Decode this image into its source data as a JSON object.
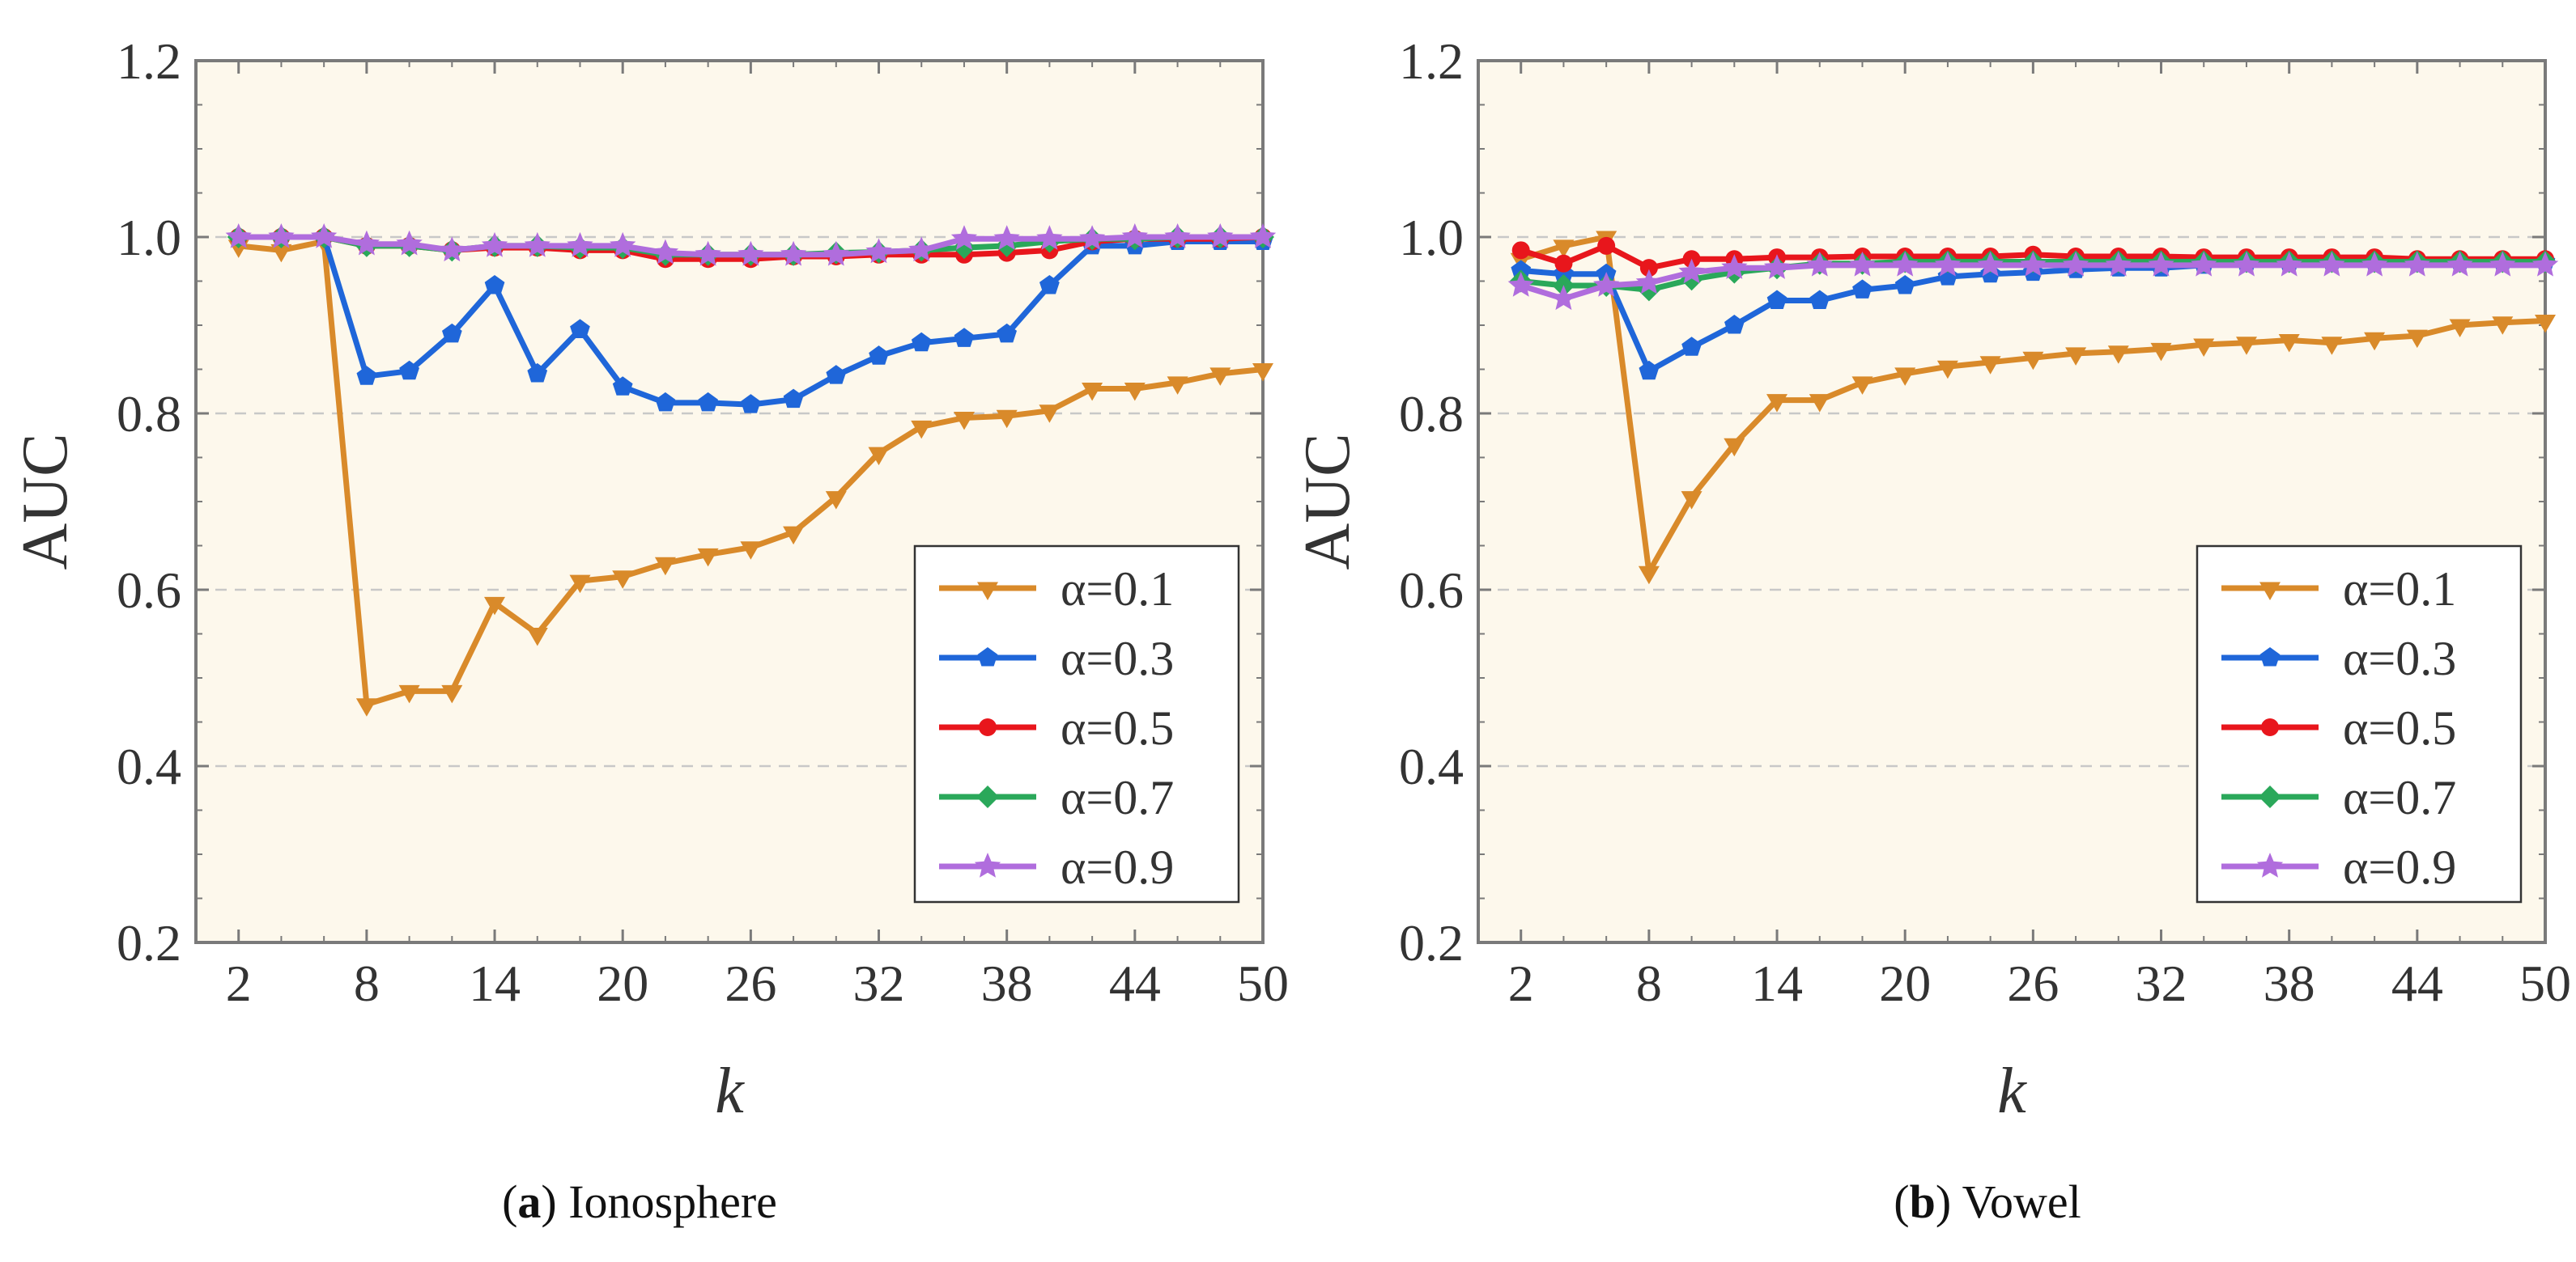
{
  "colors": {
    "plot_bg": "#fdf8ec",
    "frame": "#7a7a7a",
    "grid": "#c8c8c8",
    "series": [
      "#d98a2a",
      "#1f66d9",
      "#e8161c",
      "#2aa85a",
      "#b06ddd"
    ]
  },
  "chart_data": [
    {
      "type": "line",
      "caption_letter": "a",
      "caption_text": "Ionosphere",
      "xlabel": "k",
      "ylabel": "AUC",
      "xlim": [
        0,
        50
      ],
      "ylim": [
        0.2,
        1.2
      ],
      "xticks": [
        2,
        8,
        14,
        20,
        26,
        32,
        38,
        44,
        50
      ],
      "yticks": [
        0.2,
        0.4,
        0.6,
        0.8,
        1.0,
        1.2
      ],
      "ytick_labels": [
        "0.2",
        "0.4",
        "0.6",
        "0.8",
        "1.0",
        "1.2"
      ],
      "grid_y": [
        0.4,
        0.6,
        0.8,
        1.0
      ],
      "legend_position": "bottom-right",
      "x": [
        2,
        4,
        6,
        8,
        10,
        12,
        14,
        16,
        18,
        20,
        22,
        24,
        26,
        28,
        30,
        32,
        34,
        36,
        38,
        40,
        42,
        44,
        46,
        48,
        50
      ],
      "series": [
        {
          "name": "α=0.1",
          "marker": "triangle-down",
          "values": [
            0.99,
            0.985,
            0.995,
            0.47,
            0.485,
            0.485,
            0.585,
            0.55,
            0.61,
            0.615,
            0.63,
            0.64,
            0.648,
            0.665,
            0.705,
            0.755,
            0.785,
            0.795,
            0.797,
            0.803,
            0.828,
            0.828,
            0.835,
            0.845,
            0.85
          ]
        },
        {
          "name": "α=0.3",
          "marker": "pentagon",
          "values": [
            1.0,
            1.0,
            1.0,
            0.842,
            0.848,
            0.89,
            0.945,
            0.845,
            0.895,
            0.83,
            0.812,
            0.812,
            0.81,
            0.816,
            0.843,
            0.865,
            0.88,
            0.885,
            0.89,
            0.945,
            0.99,
            0.99,
            0.995,
            0.995,
            0.995
          ]
        },
        {
          "name": "α=0.5",
          "marker": "circle",
          "values": [
            1.0,
            1.0,
            1.0,
            0.99,
            0.99,
            0.985,
            0.988,
            0.988,
            0.985,
            0.985,
            0.975,
            0.975,
            0.975,
            0.978,
            0.978,
            0.98,
            0.98,
            0.98,
            0.982,
            0.985,
            0.995,
            0.998,
            0.998,
            0.998,
            1.0
          ]
        },
        {
          "name": "α=0.7",
          "marker": "diamond",
          "values": [
            1.0,
            1.0,
            1.0,
            0.99,
            0.99,
            0.985,
            0.99,
            0.99,
            0.988,
            0.988,
            0.98,
            0.98,
            0.98,
            0.98,
            0.982,
            0.983,
            0.985,
            0.988,
            0.99,
            0.995,
            0.998,
            0.998,
            1.0,
            1.0,
            1.0
          ]
        },
        {
          "name": "α=0.9",
          "marker": "star",
          "values": [
            1.0,
            1.0,
            1.0,
            0.992,
            0.992,
            0.985,
            0.99,
            0.99,
            0.99,
            0.99,
            0.982,
            0.98,
            0.98,
            0.98,
            0.98,
            0.983,
            0.985,
            0.998,
            0.998,
            0.998,
            0.998,
            1.0,
            1.0,
            1.0,
            1.0
          ]
        }
      ]
    },
    {
      "type": "line",
      "caption_letter": "b",
      "caption_text": "Vowel",
      "xlabel": "k",
      "ylabel": "AUC",
      "xlim": [
        0,
        50
      ],
      "ylim": [
        0.2,
        1.2
      ],
      "xticks": [
        2,
        8,
        14,
        20,
        26,
        32,
        38,
        44,
        50
      ],
      "yticks": [
        0.2,
        0.4,
        0.6,
        0.8,
        1.0,
        1.2
      ],
      "ytick_labels": [
        "0.2",
        "0.4",
        "0.6",
        "0.8",
        "1.0",
        "1.2"
      ],
      "grid_y": [
        0.4,
        0.6,
        0.8,
        1.0
      ],
      "legend_position": "bottom-right",
      "x": [
        2,
        4,
        6,
        8,
        10,
        12,
        14,
        16,
        18,
        20,
        22,
        24,
        26,
        28,
        30,
        32,
        34,
        36,
        38,
        40,
        42,
        44,
        46,
        48,
        50
      ],
      "series": [
        {
          "name": "α=0.1",
          "marker": "triangle-down",
          "values": [
            0.975,
            0.99,
            1.0,
            0.62,
            0.705,
            0.765,
            0.815,
            0.815,
            0.835,
            0.845,
            0.853,
            0.858,
            0.863,
            0.868,
            0.87,
            0.873,
            0.878,
            0.88,
            0.883,
            0.88,
            0.885,
            0.888,
            0.9,
            0.903,
            0.905
          ]
        },
        {
          "name": "α=0.3",
          "marker": "pentagon",
          "values": [
            0.962,
            0.958,
            0.958,
            0.848,
            0.875,
            0.9,
            0.928,
            0.928,
            0.94,
            0.945,
            0.955,
            0.958,
            0.96,
            0.963,
            0.965,
            0.965,
            0.968,
            0.97,
            0.97,
            0.972,
            0.972,
            0.972,
            0.972,
            0.972,
            0.972
          ]
        },
        {
          "name": "α=0.5",
          "marker": "circle",
          "values": [
            0.985,
            0.97,
            0.99,
            0.965,
            0.975,
            0.975,
            0.977,
            0.977,
            0.978,
            0.978,
            0.978,
            0.978,
            0.98,
            0.978,
            0.978,
            0.978,
            0.977,
            0.977,
            0.977,
            0.977,
            0.977,
            0.975,
            0.975,
            0.975,
            0.975
          ]
        },
        {
          "name": "α=0.7",
          "marker": "diamond",
          "values": [
            0.95,
            0.945,
            0.945,
            0.94,
            0.952,
            0.96,
            0.965,
            0.97,
            0.97,
            0.972,
            0.972,
            0.972,
            0.972,
            0.972,
            0.972,
            0.972,
            0.972,
            0.972,
            0.972,
            0.972,
            0.972,
            0.972,
            0.972,
            0.972,
            0.972
          ]
        },
        {
          "name": "α=0.9",
          "marker": "star",
          "values": [
            0.945,
            0.93,
            0.945,
            0.948,
            0.96,
            0.965,
            0.965,
            0.968,
            0.968,
            0.968,
            0.968,
            0.968,
            0.968,
            0.968,
            0.968,
            0.968,
            0.968,
            0.968,
            0.968,
            0.968,
            0.968,
            0.968,
            0.968,
            0.968,
            0.968
          ]
        }
      ]
    }
  ]
}
